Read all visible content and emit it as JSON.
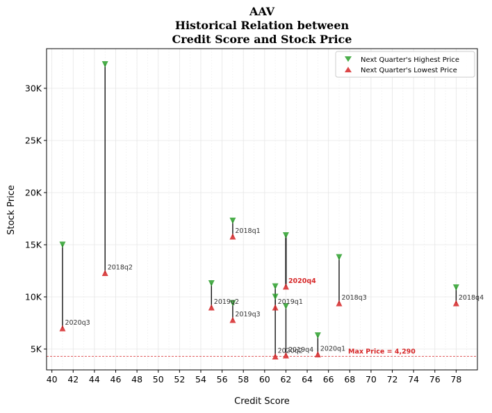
{
  "chart_data": {
    "type": "scatter",
    "title_lines": [
      "AAV",
      "Historical Relation between",
      "Credit Score and Stock Price"
    ],
    "xlabel": "Credit Score",
    "ylabel": "Stock Price",
    "xlim": [
      39.5,
      80
    ],
    "ylim": [
      3000,
      33800
    ],
    "xticks": [
      40,
      42,
      44,
      46,
      48,
      50,
      52,
      54,
      56,
      58,
      60,
      62,
      64,
      66,
      68,
      70,
      72,
      74,
      76,
      78
    ],
    "yticks": [
      {
        "value": 5000,
        "label": "5K"
      },
      {
        "value": 10000,
        "label": "10K"
      },
      {
        "value": 15000,
        "label": "15K"
      },
      {
        "value": 20000,
        "label": "20K"
      },
      {
        "value": 25000,
        "label": "25K"
      },
      {
        "value": 30000,
        "label": "30K"
      }
    ],
    "grid": true,
    "legend_position": "top-right",
    "series": [
      {
        "name": "Next Quarter's Highest Price",
        "color": "#2ca02c",
        "marker": "triangle-down"
      },
      {
        "name": "Next Quarter's Lowest Price",
        "color": "#d62728",
        "marker": "triangle-up"
      }
    ],
    "points": [
      {
        "label": "2020q3",
        "x": 41,
        "high": 15000,
        "low": 7000,
        "highlight": false
      },
      {
        "label": "2018q2",
        "x": 45,
        "high": 32300,
        "low": 12300,
        "highlight": false
      },
      {
        "label": "2019q2",
        "x": 55,
        "high": 11300,
        "low": 9000,
        "highlight": false
      },
      {
        "label": "2018q1",
        "x": 57,
        "high": 17300,
        "low": 15800,
        "highlight": false
      },
      {
        "label": "2019q3",
        "x": 57,
        "high": 9400,
        "low": 7800,
        "highlight": false
      },
      {
        "label": "2020q2",
        "x": 61,
        "high": 10000,
        "low": 4300,
        "highlight": false
      },
      {
        "label": "2019q1",
        "x": 61,
        "high": 11000,
        "low": 9000,
        "highlight": false
      },
      {
        "label": "2020q4",
        "x": 62,
        "high": 15900,
        "low": 11000,
        "highlight": true
      },
      {
        "label": "2019q4",
        "x": 62,
        "high": 9100,
        "low": 4400,
        "highlight": false
      },
      {
        "label": "2020q1",
        "x": 65,
        "high": 6300,
        "low": 4500,
        "highlight": false
      },
      {
        "label": "2018q3",
        "x": 67,
        "high": 13800,
        "low": 9400,
        "highlight": false
      },
      {
        "label": "2018q4",
        "x": 78,
        "high": 10900,
        "low": 9400,
        "highlight": false
      }
    ],
    "max_price_line": {
      "value": 4290,
      "label": "Max Price = 4,290",
      "color": "#d62728"
    }
  }
}
